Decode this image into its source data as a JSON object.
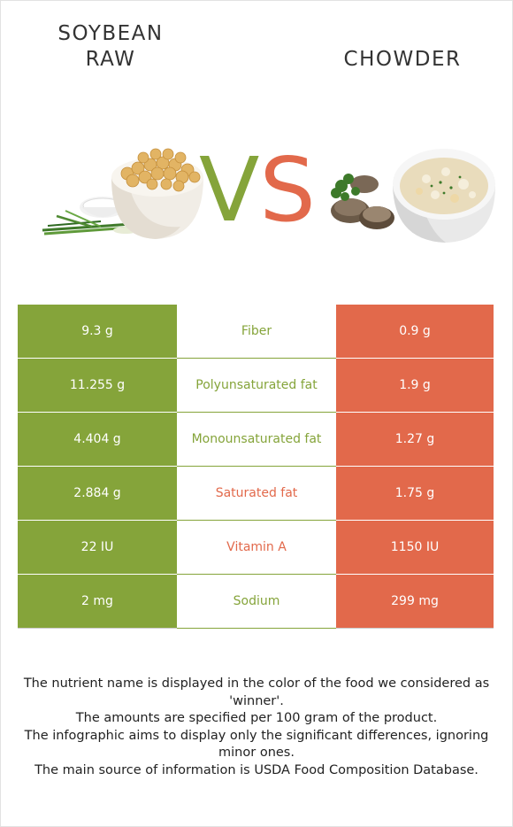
{
  "left_food": {
    "line1": "SOYBEAN",
    "line2": "RAW",
    "color": "#85a43a"
  },
  "right_food": {
    "name": "CHOWDER",
    "color": "#e2694b"
  },
  "vs": {
    "v": "V",
    "s": "S"
  },
  "rows": [
    {
      "left": "9.3 g",
      "nutrient": "Fiber",
      "right": "0.9 g",
      "winner": "left"
    },
    {
      "left": "11.255 g",
      "nutrient": "Polyunsaturated fat",
      "right": "1.9 g",
      "winner": "left"
    },
    {
      "left": "4.404 g",
      "nutrient": "Monounsaturated fat",
      "right": "1.27 g",
      "winner": "left"
    },
    {
      "left": "2.884 g",
      "nutrient": "Saturated fat",
      "right": "1.75 g",
      "winner": "right"
    },
    {
      "left": "22 IU",
      "nutrient": "Vitamin A",
      "right": "1150 IU",
      "winner": "right"
    },
    {
      "left": "2 mg",
      "nutrient": "Sodium",
      "right": "299 mg",
      "winner": "left"
    }
  ],
  "notes": [
    "The nutrient name is displayed in the color of the food we considered as 'winner'.",
    "The amounts are specified per 100 gram of the product.",
    "The infographic aims to display only the significant differences, ignoring minor ones.",
    "The main source of information is USDA Food Composition Database."
  ]
}
